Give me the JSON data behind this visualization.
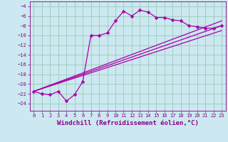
{
  "xlabel": "Windchill (Refroidissement éolien,°C)",
  "bg_color": "#cce8f0",
  "line_color": "#aa00aa",
  "grid_color": "#99ccbb",
  "xlim": [
    -0.5,
    23.5
  ],
  "ylim": [
    -25.5,
    -3.0
  ],
  "yticks": [
    -4,
    -6,
    -8,
    -10,
    -12,
    -14,
    -16,
    -18,
    -20,
    -22,
    -24
  ],
  "xticks": [
    0,
    1,
    2,
    3,
    4,
    5,
    6,
    7,
    8,
    9,
    10,
    11,
    12,
    13,
    14,
    15,
    16,
    17,
    18,
    19,
    20,
    21,
    22,
    23
  ],
  "series1_x": [
    0,
    1,
    2,
    3,
    4,
    5,
    6,
    7,
    8,
    9,
    10,
    11,
    12,
    13,
    14,
    15,
    16,
    17,
    18,
    19,
    20,
    21,
    22,
    23
  ],
  "series1_y": [
    -21.5,
    -22.0,
    -22.2,
    -21.5,
    -23.5,
    -22.2,
    -19.5,
    -10.0,
    -10.0,
    -9.5,
    -7.0,
    -5.0,
    -6.0,
    -4.8,
    -5.2,
    -6.3,
    -6.3,
    -6.8,
    -7.0,
    -8.0,
    -8.2,
    -8.5,
    -8.5,
    -8.0
  ],
  "line2_x": [
    0,
    23
  ],
  "line2_y": [
    -21.5,
    -8.0
  ],
  "line3_x": [
    0,
    23
  ],
  "line3_y": [
    -21.5,
    -9.0
  ],
  "line4_x": [
    0,
    23
  ],
  "line4_y": [
    -21.5,
    -7.0
  ],
  "marker": "D",
  "markersize": 2.5,
  "linewidth": 0.9,
  "tick_fontsize": 5.0,
  "xlabel_fontsize": 6.5,
  "text_color": "#880088"
}
